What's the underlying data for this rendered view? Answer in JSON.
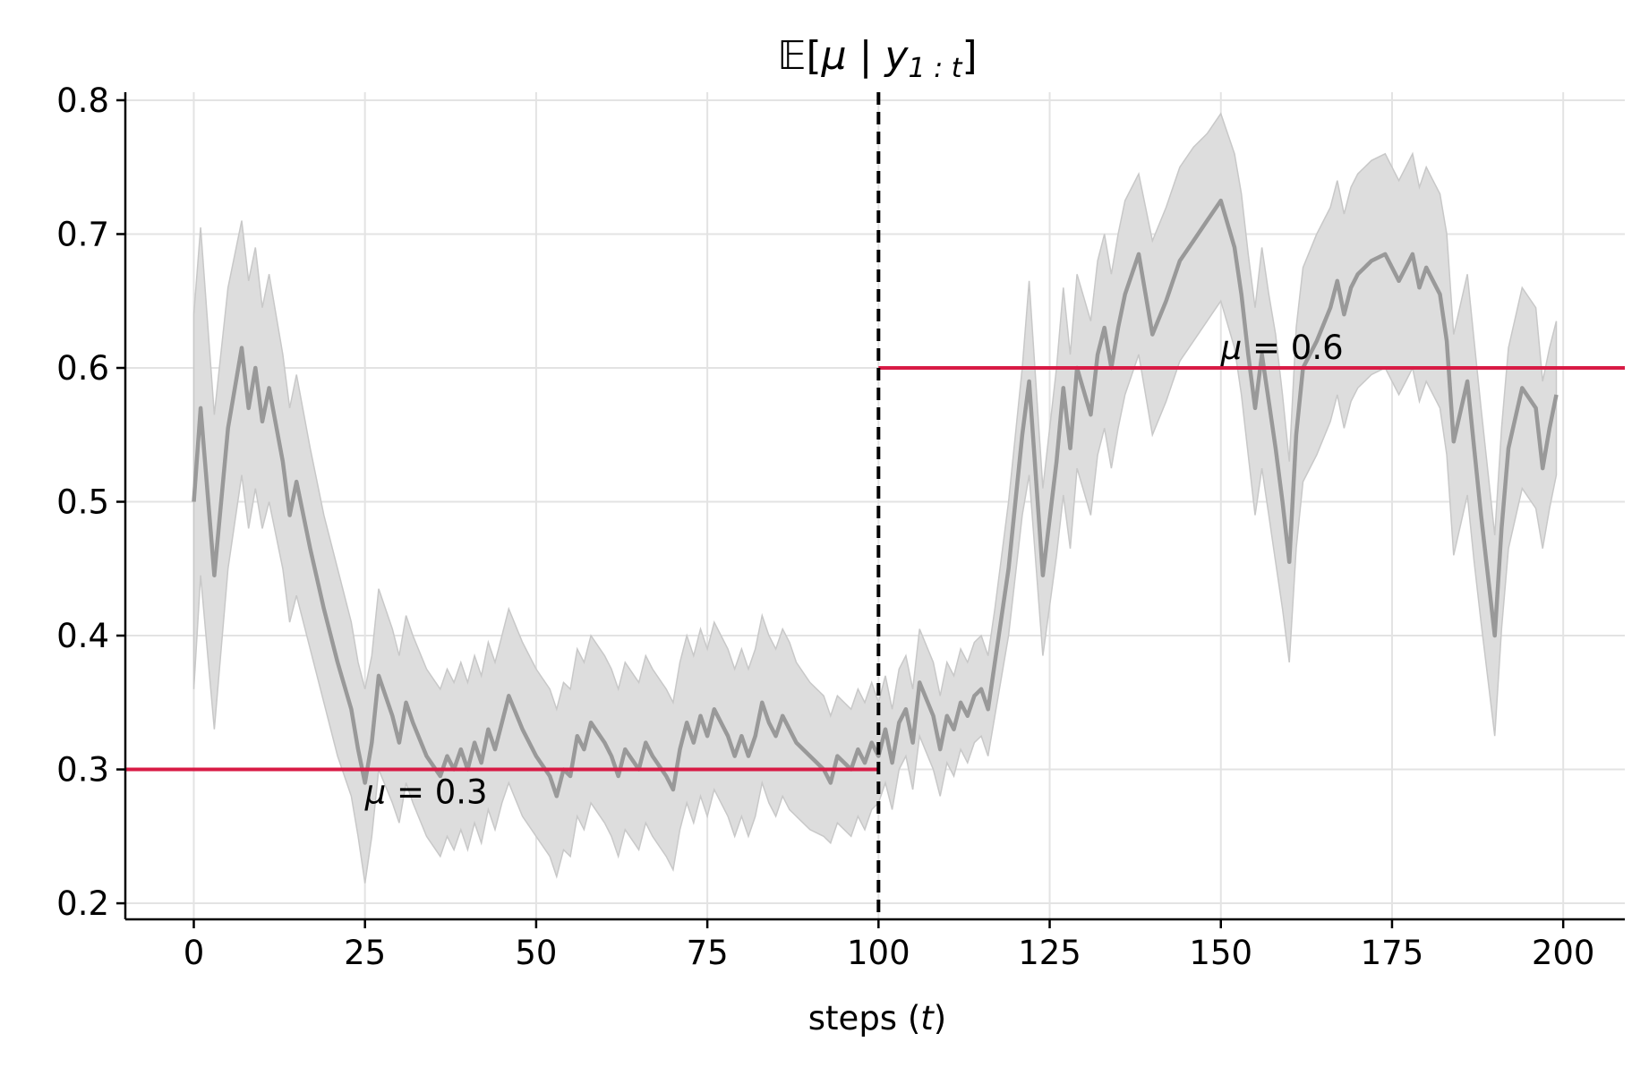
{
  "chart_data": {
    "type": "line",
    "title_parts": {
      "prefix": "𝔼[",
      "var": "μ",
      "bar": " | ",
      "y": "y",
      "sub": "1 : t",
      "suffix": "]"
    },
    "xlabel_parts": {
      "text": "steps (",
      "var": "t",
      "end": ")"
    },
    "ylabel": "",
    "xlim": [
      -10,
      209
    ],
    "ylim": [
      0.188,
      0.806
    ],
    "xticks": [
      0,
      25,
      50,
      75,
      100,
      125,
      150,
      175,
      200
    ],
    "xtick_labels": [
      "0",
      "25",
      "50",
      "75",
      "100",
      "125",
      "150",
      "175",
      "200"
    ],
    "yticks": [
      0.2,
      0.3,
      0.4,
      0.5,
      0.6,
      0.7,
      0.8
    ],
    "ytick_labels": [
      "0.2",
      "0.3",
      "0.4",
      "0.5",
      "0.6",
      "0.7",
      "0.8"
    ],
    "grid": true,
    "colors": {
      "mean_line": "#999999",
      "band": "#dddddd",
      "band_edge": "#c8c8c8",
      "true_mu": "#d81b45",
      "changepoint": "#000000",
      "grid": "#e3e3e3"
    },
    "series": [
      {
        "x": [
          0,
          1,
          3,
          5,
          7,
          8,
          9,
          10,
          11,
          13,
          14,
          15,
          17,
          19,
          21,
          23,
          24,
          25,
          26,
          27,
          29,
          30,
          31,
          32,
          34,
          36,
          37,
          38,
          39,
          40,
          41,
          42,
          43,
          44,
          45,
          46,
          48,
          50,
          52,
          53,
          54,
          55,
          56,
          57,
          58,
          60,
          61,
          62,
          63,
          65,
          66,
          67,
          69,
          70,
          71,
          72,
          73,
          74,
          75,
          76,
          78,
          79,
          80,
          81,
          82,
          83,
          84,
          85,
          86,
          87,
          88,
          90,
          92,
          93,
          94,
          96,
          97,
          98,
          99,
          100,
          101,
          102,
          103,
          104,
          105,
          106,
          108,
          109,
          110,
          111,
          112,
          113,
          114,
          115,
          116,
          117,
          119,
          121,
          122,
          124,
          126,
          127,
          128,
          129,
          131,
          132,
          133,
          134,
          135,
          136,
          138,
          140,
          142,
          143,
          144,
          146,
          148,
          150,
          152,
          153,
          154,
          155,
          156,
          157,
          158,
          159,
          160,
          161,
          162,
          164,
          166,
          167,
          168,
          169,
          170,
          172,
          174,
          176,
          177,
          178,
          179,
          180,
          181,
          182,
          183,
          184,
          186,
          187,
          188,
          190,
          191,
          192,
          194,
          196,
          197,
          198,
          199
        ],
        "mean": [
          0.5,
          0.57,
          0.445,
          0.555,
          0.615,
          0.57,
          0.6,
          0.56,
          0.585,
          0.53,
          0.49,
          0.515,
          0.465,
          0.42,
          0.38,
          0.345,
          0.315,
          0.29,
          0.32,
          0.37,
          0.34,
          0.32,
          0.35,
          0.335,
          0.31,
          0.295,
          0.31,
          0.3,
          0.315,
          0.3,
          0.32,
          0.305,
          0.33,
          0.315,
          0.335,
          0.355,
          0.33,
          0.31,
          0.295,
          0.28,
          0.3,
          0.295,
          0.325,
          0.315,
          0.335,
          0.32,
          0.31,
          0.295,
          0.315,
          0.3,
          0.32,
          0.31,
          0.295,
          0.285,
          0.315,
          0.335,
          0.32,
          0.34,
          0.325,
          0.345,
          0.325,
          0.31,
          0.325,
          0.31,
          0.325,
          0.35,
          0.335,
          0.325,
          0.34,
          0.33,
          0.32,
          0.31,
          0.3,
          0.29,
          0.31,
          0.3,
          0.315,
          0.305,
          0.32,
          0.31,
          0.33,
          0.305,
          0.335,
          0.345,
          0.32,
          0.365,
          0.34,
          0.315,
          0.34,
          0.33,
          0.35,
          0.34,
          0.355,
          0.36,
          0.345,
          0.38,
          0.45,
          0.55,
          0.59,
          0.445,
          0.53,
          0.585,
          0.54,
          0.6,
          0.565,
          0.61,
          0.63,
          0.6,
          0.63,
          0.655,
          0.685,
          0.625,
          0.65,
          0.665,
          0.68,
          0.695,
          0.71,
          0.725,
          0.69,
          0.655,
          0.61,
          0.57,
          0.61,
          0.575,
          0.54,
          0.5,
          0.455,
          0.55,
          0.6,
          0.62,
          0.645,
          0.665,
          0.64,
          0.66,
          0.67,
          0.68,
          0.685,
          0.665,
          0.675,
          0.685,
          0.66,
          0.675,
          0.665,
          0.655,
          0.62,
          0.545,
          0.59,
          0.54,
          0.49,
          0.4,
          0.48,
          0.54,
          0.585,
          0.57,
          0.525,
          0.555,
          0.58
        ],
        "lower": [
          0.36,
          0.445,
          0.33,
          0.45,
          0.52,
          0.48,
          0.51,
          0.48,
          0.5,
          0.45,
          0.41,
          0.43,
          0.39,
          0.35,
          0.31,
          0.28,
          0.25,
          0.215,
          0.25,
          0.3,
          0.275,
          0.26,
          0.29,
          0.275,
          0.25,
          0.235,
          0.25,
          0.24,
          0.255,
          0.24,
          0.26,
          0.245,
          0.27,
          0.255,
          0.275,
          0.29,
          0.265,
          0.25,
          0.235,
          0.22,
          0.24,
          0.235,
          0.265,
          0.255,
          0.275,
          0.26,
          0.25,
          0.235,
          0.255,
          0.24,
          0.26,
          0.25,
          0.235,
          0.225,
          0.255,
          0.275,
          0.26,
          0.28,
          0.265,
          0.285,
          0.265,
          0.25,
          0.265,
          0.25,
          0.265,
          0.29,
          0.275,
          0.265,
          0.28,
          0.27,
          0.265,
          0.255,
          0.25,
          0.245,
          0.26,
          0.25,
          0.265,
          0.255,
          0.27,
          0.275,
          0.29,
          0.27,
          0.3,
          0.31,
          0.285,
          0.325,
          0.3,
          0.28,
          0.305,
          0.295,
          0.315,
          0.305,
          0.32,
          0.325,
          0.31,
          0.34,
          0.4,
          0.49,
          0.52,
          0.385,
          0.46,
          0.505,
          0.465,
          0.525,
          0.49,
          0.535,
          0.555,
          0.525,
          0.555,
          0.58,
          0.61,
          0.55,
          0.575,
          0.59,
          0.605,
          0.62,
          0.635,
          0.65,
          0.615,
          0.58,
          0.535,
          0.49,
          0.525,
          0.49,
          0.455,
          0.42,
          0.38,
          0.465,
          0.515,
          0.535,
          0.56,
          0.58,
          0.555,
          0.575,
          0.585,
          0.595,
          0.6,
          0.58,
          0.59,
          0.6,
          0.575,
          0.59,
          0.58,
          0.57,
          0.535,
          0.46,
          0.505,
          0.455,
          0.41,
          0.325,
          0.405,
          0.465,
          0.51,
          0.495,
          0.465,
          0.495,
          0.52
        ],
        "upper": [
          0.64,
          0.705,
          0.565,
          0.66,
          0.71,
          0.665,
          0.69,
          0.645,
          0.67,
          0.61,
          0.57,
          0.595,
          0.54,
          0.49,
          0.45,
          0.41,
          0.38,
          0.36,
          0.385,
          0.435,
          0.405,
          0.385,
          0.415,
          0.4,
          0.375,
          0.36,
          0.375,
          0.365,
          0.38,
          0.365,
          0.385,
          0.37,
          0.395,
          0.38,
          0.4,
          0.42,
          0.395,
          0.375,
          0.36,
          0.345,
          0.365,
          0.36,
          0.39,
          0.38,
          0.4,
          0.385,
          0.375,
          0.36,
          0.38,
          0.365,
          0.385,
          0.375,
          0.36,
          0.35,
          0.38,
          0.4,
          0.385,
          0.405,
          0.39,
          0.41,
          0.39,
          0.375,
          0.39,
          0.375,
          0.39,
          0.415,
          0.4,
          0.39,
          0.405,
          0.395,
          0.38,
          0.365,
          0.355,
          0.34,
          0.355,
          0.345,
          0.36,
          0.35,
          0.365,
          0.35,
          0.37,
          0.345,
          0.375,
          0.385,
          0.36,
          0.405,
          0.38,
          0.355,
          0.38,
          0.37,
          0.39,
          0.38,
          0.395,
          0.4,
          0.385,
          0.42,
          0.5,
          0.6,
          0.665,
          0.51,
          0.6,
          0.66,
          0.61,
          0.67,
          0.635,
          0.68,
          0.7,
          0.67,
          0.7,
          0.725,
          0.745,
          0.695,
          0.72,
          0.735,
          0.75,
          0.765,
          0.775,
          0.79,
          0.76,
          0.73,
          0.685,
          0.645,
          0.69,
          0.655,
          0.625,
          0.58,
          0.53,
          0.63,
          0.675,
          0.7,
          0.72,
          0.74,
          0.715,
          0.735,
          0.745,
          0.755,
          0.76,
          0.74,
          0.75,
          0.76,
          0.735,
          0.75,
          0.74,
          0.73,
          0.7,
          0.625,
          0.67,
          0.62,
          0.57,
          0.475,
          0.555,
          0.615,
          0.66,
          0.645,
          0.59,
          0.615,
          0.635
        ]
      }
    ],
    "hlines": [
      {
        "y": 0.3,
        "x_from": -10,
        "x_to": 100
      },
      {
        "y": 0.6,
        "x_from": 100,
        "x_to": 209
      }
    ],
    "vline": {
      "x": 100,
      "style": "dashed"
    },
    "annotations": [
      {
        "var": "μ",
        "eq": " = 0.3",
        "x": 25,
        "y": 0.3
      },
      {
        "var": "μ",
        "eq": " = 0.6",
        "x": 150,
        "y": 0.6
      }
    ]
  }
}
